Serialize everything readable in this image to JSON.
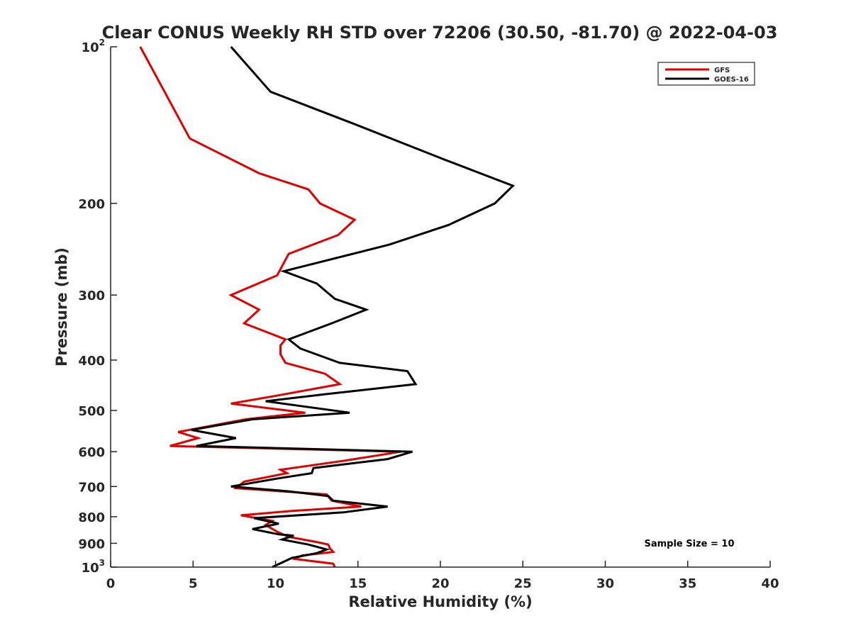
{
  "chart_data": {
    "type": "line",
    "title": "Clear CONUS Weekly RH STD over 72206 (30.50, -81.70) @ 2022-04-03",
    "xlabel": "Relative Humidity (%)",
    "ylabel": "Pressure (mb)",
    "xlim": [
      0,
      40
    ],
    "ylim": [
      100,
      1000
    ],
    "y_scale": "log",
    "y_reversed": true,
    "grid": false,
    "legend_position": "top-right",
    "x_ticks": [
      0,
      5,
      10,
      15,
      20,
      25,
      30,
      35,
      40
    ],
    "x_tick_labels": [
      "0",
      "5",
      "10",
      "15",
      "20",
      "25",
      "30",
      "35",
      "40"
    ],
    "y_ticks": [
      100,
      200,
      300,
      400,
      500,
      600,
      700,
      800,
      900,
      1000
    ],
    "y_tick_labels": [
      {
        "base": "10",
        "sup": "2"
      },
      {
        "base": "200",
        "sup": ""
      },
      {
        "base": "300",
        "sup": ""
      },
      {
        "base": "400",
        "sup": ""
      },
      {
        "base": "500",
        "sup": ""
      },
      {
        "base": "600",
        "sup": ""
      },
      {
        "base": "700",
        "sup": ""
      },
      {
        "base": "800",
        "sup": ""
      },
      {
        "base": "900",
        "sup": ""
      },
      {
        "base": "10",
        "sup": "3"
      }
    ],
    "annotation": "Sample Size = 10",
    "series": [
      {
        "name": "GFS",
        "color": "#e00000",
        "points": [
          [
            1.8,
            100
          ],
          [
            4.8,
            150
          ],
          [
            9.0,
            175
          ],
          [
            12.0,
            188
          ],
          [
            12.7,
            200
          ],
          [
            14.8,
            215
          ],
          [
            13.8,
            230
          ],
          [
            10.8,
            250
          ],
          [
            10.1,
            275
          ],
          [
            7.3,
            300
          ],
          [
            9.0,
            320
          ],
          [
            8.1,
            340
          ],
          [
            10.6,
            365
          ],
          [
            10.3,
            375
          ],
          [
            10.3,
            390
          ],
          [
            10.6,
            405
          ],
          [
            13.0,
            425
          ],
          [
            13.9,
            445
          ],
          [
            9.8,
            470
          ],
          [
            7.3,
            485
          ],
          [
            11.8,
            505
          ],
          [
            8.2,
            520
          ],
          [
            4.1,
            550
          ],
          [
            5.3,
            565
          ],
          [
            3.6,
            585
          ],
          [
            17.6,
            600
          ],
          [
            14.1,
            625
          ],
          [
            10.3,
            650
          ],
          [
            10.7,
            660
          ],
          [
            8.1,
            685
          ],
          [
            7.6,
            705
          ],
          [
            13.1,
            725
          ],
          [
            13.4,
            745
          ],
          [
            15.2,
            765
          ],
          [
            11.0,
            780
          ],
          [
            7.9,
            795
          ],
          [
            9.8,
            815
          ],
          [
            9.4,
            830
          ],
          [
            10.1,
            855
          ],
          [
            10.8,
            875
          ],
          [
            12.5,
            895
          ],
          [
            13.2,
            905
          ],
          [
            13.3,
            920
          ],
          [
            13.5,
            935
          ],
          [
            11.6,
            950
          ],
          [
            11.2,
            965
          ],
          [
            13.5,
            985
          ],
          [
            13.6,
            1000
          ]
        ]
      },
      {
        "name": "GOES-16",
        "color": "#000000",
        "points": [
          [
            7.3,
            100
          ],
          [
            9.7,
            122
          ],
          [
            14.6,
            140
          ],
          [
            20.3,
            165
          ],
          [
            24.4,
            185
          ],
          [
            23.3,
            200
          ],
          [
            20.5,
            220
          ],
          [
            16.9,
            240
          ],
          [
            10.5,
            270
          ],
          [
            12.5,
            285
          ],
          [
            13.6,
            305
          ],
          [
            15.5,
            320
          ],
          [
            13.4,
            340
          ],
          [
            10.8,
            365
          ],
          [
            11.5,
            380
          ],
          [
            13.9,
            405
          ],
          [
            18.0,
            420
          ],
          [
            18.5,
            445
          ],
          [
            13.1,
            465
          ],
          [
            9.4,
            480
          ],
          [
            14.5,
            505
          ],
          [
            8.6,
            520
          ],
          [
            4.9,
            545
          ],
          [
            7.6,
            565
          ],
          [
            5.2,
            585
          ],
          [
            18.3,
            600
          ],
          [
            16.8,
            620
          ],
          [
            12.3,
            645
          ],
          [
            12.2,
            660
          ],
          [
            10.2,
            675
          ],
          [
            7.3,
            700
          ],
          [
            10.8,
            715
          ],
          [
            13.2,
            730
          ],
          [
            13.5,
            745
          ],
          [
            16.8,
            765
          ],
          [
            14.1,
            785
          ],
          [
            8.7,
            805
          ],
          [
            10.2,
            825
          ],
          [
            8.6,
            845
          ],
          [
            10.2,
            865
          ],
          [
            11.1,
            870
          ],
          [
            10.4,
            885
          ],
          [
            12.0,
            905
          ],
          [
            13.1,
            925
          ],
          [
            12.5,
            940
          ],
          [
            11.0,
            960
          ],
          [
            9.8,
            1000
          ]
        ]
      }
    ]
  }
}
